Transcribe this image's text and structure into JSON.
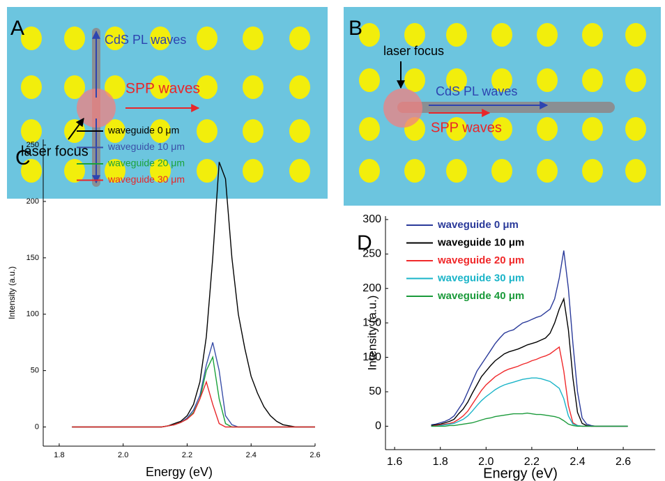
{
  "panel_a": {
    "label": "A",
    "pl_label": "CdS PL waves",
    "spp_label": "SPP waves",
    "laser_label": "laser focus"
  },
  "panel_b": {
    "label": "B",
    "pl_label": "CdS PL waves",
    "spp_label": "SPP waves",
    "laser_label": "laser focus"
  },
  "chart_data": [
    {
      "type": "line",
      "panel_label": "C",
      "xlabel": "Energy (eV)",
      "ylabel": "Intensity (a.u.)",
      "xlim": [
        1.75,
        2.6
      ],
      "ylim": [
        -17,
        255
      ],
      "xticks": [
        {
          "value": 1.8,
          "label": "1.8"
        },
        {
          "value": 2.0,
          "label": "2.0"
        },
        {
          "value": 2.2,
          "label": "2.2"
        },
        {
          "value": 2.4,
          "label": "2.4"
        },
        {
          "value": 2.6,
          "label": "2.6"
        }
      ],
      "yticks": [
        0,
        50,
        100,
        150,
        200,
        250
      ],
      "x": [
        1.84,
        1.86,
        1.88,
        1.9,
        1.92,
        1.94,
        1.96,
        1.98,
        2.0,
        2.02,
        2.04,
        2.06,
        2.08,
        2.1,
        2.12,
        2.14,
        2.16,
        2.18,
        2.2,
        2.22,
        2.24,
        2.26,
        2.28,
        2.3,
        2.32,
        2.34,
        2.36,
        2.38,
        2.4,
        2.42,
        2.44,
        2.46,
        2.48,
        2.5,
        2.52,
        2.54,
        2.56,
        2.58,
        2.6
      ],
      "series": [
        {
          "name": "waveguide 0 μm",
          "color": "#000000",
          "values": [
            0,
            0,
            0,
            0,
            0,
            0,
            0,
            0,
            0,
            0,
            0,
            0,
            0,
            0,
            0,
            1,
            3,
            5,
            10,
            20,
            40,
            80,
            150,
            235,
            220,
            150,
            100,
            70,
            45,
            30,
            18,
            10,
            5,
            2,
            1,
            0,
            0,
            0,
            0
          ]
        },
        {
          "name": "waveguide 10 μm",
          "color": "#3a4fa8",
          "values": [
            0,
            0,
            0,
            0,
            0,
            0,
            0,
            0,
            0,
            0,
            0,
            0,
            0,
            0,
            0,
            1,
            2,
            4,
            8,
            15,
            28,
            55,
            75,
            50,
            10,
            2,
            0,
            0,
            0,
            0,
            0,
            0,
            0,
            0,
            0,
            0,
            0,
            0,
            0
          ]
        },
        {
          "name": "waveguide 20 μm",
          "color": "#1aa23a",
          "values": [
            0,
            0,
            0,
            0,
            0,
            0,
            0,
            0,
            0,
            0,
            0,
            0,
            0,
            0,
            0,
            1,
            2,
            4,
            7,
            13,
            25,
            50,
            62,
            25,
            3,
            0,
            0,
            0,
            0,
            0,
            0,
            0,
            0,
            0,
            0,
            0,
            0,
            0,
            0
          ]
        },
        {
          "name": "waveguide 30 μm",
          "color": "#e8262a",
          "values": [
            0,
            0,
            0,
            0,
            0,
            0,
            0,
            0,
            0,
            0,
            0,
            0,
            0,
            0,
            0,
            1,
            2,
            4,
            7,
            12,
            25,
            40,
            20,
            3,
            0,
            0,
            0,
            0,
            0,
            0,
            0,
            0,
            0,
            0,
            0,
            0,
            0,
            0,
            0
          ]
        }
      ]
    },
    {
      "type": "line",
      "panel_label": "D",
      "xlabel": "Energy (eV)",
      "ylabel": "Intensity (a.u.)",
      "xlim": [
        1.56,
        2.74
      ],
      "ylim": [
        -34,
        305
      ],
      "xticks": [
        {
          "value": 1.6,
          "label": "1.6"
        },
        {
          "value": 1.8,
          "label": "1.8"
        },
        {
          "value": 2.0,
          "label": "2.0"
        },
        {
          "value": 2.2,
          "label": "2.2"
        },
        {
          "value": 2.4,
          "label": "2.4"
        },
        {
          "value": 2.6,
          "label": "2.6"
        }
      ],
      "yticks": [
        0,
        50,
        100,
        150,
        200,
        250,
        300
      ],
      "x": [
        1.76,
        1.78,
        1.8,
        1.82,
        1.84,
        1.86,
        1.88,
        1.9,
        1.92,
        1.94,
        1.96,
        1.98,
        2.0,
        2.02,
        2.04,
        2.06,
        2.08,
        2.1,
        2.12,
        2.14,
        2.16,
        2.18,
        2.2,
        2.22,
        2.24,
        2.26,
        2.28,
        2.3,
        2.32,
        2.34,
        2.36,
        2.38,
        2.4,
        2.42,
        2.44,
        2.46,
        2.48,
        2.5,
        2.52,
        2.54,
        2.56,
        2.58,
        2.6,
        2.62
      ],
      "series": [
        {
          "name": "waveguide 0 μm",
          "color": "#2a3a9a",
          "values": [
            2,
            3,
            5,
            7,
            10,
            15,
            25,
            35,
            50,
            65,
            80,
            90,
            100,
            110,
            120,
            128,
            135,
            138,
            140,
            145,
            150,
            152,
            155,
            158,
            160,
            165,
            170,
            185,
            215,
            255,
            200,
            120,
            50,
            12,
            3,
            1,
            0,
            0,
            0,
            0,
            0,
            0,
            0,
            0
          ]
        },
        {
          "name": "waveguide 10 μm",
          "color": "#000000",
          "values": [
            1,
            2,
            3,
            5,
            7,
            10,
            18,
            25,
            35,
            48,
            60,
            72,
            80,
            88,
            95,
            100,
            105,
            108,
            110,
            112,
            115,
            118,
            120,
            122,
            125,
            128,
            135,
            150,
            170,
            185,
            140,
            70,
            20,
            4,
            1,
            0,
            0,
            0,
            0,
            0,
            0,
            0,
            0,
            0
          ]
        },
        {
          "name": "waveguide 20 μm",
          "color": "#f0282a",
          "values": [
            0,
            1,
            2,
            3,
            4,
            6,
            10,
            15,
            22,
            32,
            42,
            52,
            60,
            66,
            72,
            76,
            80,
            83,
            85,
            87,
            90,
            92,
            95,
            97,
            100,
            102,
            105,
            110,
            115,
            80,
            30,
            5,
            1,
            0,
            0,
            0,
            0,
            0,
            0,
            0,
            0,
            0,
            0,
            0
          ]
        },
        {
          "name": "waveguide 30 μm",
          "color": "#1ab4c8",
          "values": [
            0,
            0,
            1,
            2,
            3,
            4,
            7,
            10,
            15,
            22,
            30,
            37,
            43,
            48,
            53,
            57,
            60,
            62,
            64,
            66,
            68,
            69,
            70,
            70,
            69,
            67,
            65,
            60,
            55,
            40,
            15,
            3,
            1,
            0,
            0,
            0,
            0,
            0,
            0,
            0,
            0,
            0,
            0,
            0
          ]
        },
        {
          "name": "waveguide 40 μm",
          "color": "#1a9a3a",
          "values": [
            0,
            0,
            0,
            0,
            1,
            1,
            2,
            3,
            4,
            5,
            7,
            9,
            11,
            12,
            14,
            15,
            16,
            17,
            18,
            18,
            18,
            19,
            18,
            17,
            17,
            16,
            15,
            14,
            12,
            8,
            3,
            1,
            0,
            0,
            0,
            0,
            0,
            0,
            0,
            0,
            0,
            0,
            0,
            0
          ]
        }
      ]
    }
  ]
}
